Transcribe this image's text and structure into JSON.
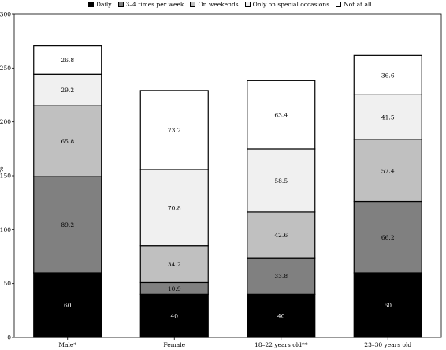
{
  "chart_data": {
    "type": "bar",
    "stacked": true,
    "categories": [
      "Male*",
      "Female",
      "18–22 years old**",
      "23–30 years old"
    ],
    "series": [
      {
        "name": "Daily",
        "color": "#000000",
        "label_color": "#ffffff",
        "values": [
          60,
          40,
          40,
          60
        ]
      },
      {
        "name": "3–4 times per week",
        "color": "#808080",
        "label_color": "#000000",
        "values": [
          89.2,
          10.9,
          33.8,
          66.2
        ]
      },
      {
        "name": "On weekends",
        "color": "#c0c0c0",
        "label_color": "#000000",
        "values": [
          65.8,
          34.2,
          42.6,
          57.4
        ]
      },
      {
        "name": "Only on special occasions",
        "color": "#f0f0f0",
        "label_color": "#000000",
        "values": [
          29.2,
          70.8,
          58.5,
          41.5
        ]
      },
      {
        "name": "Not at all",
        "color": "#ffffff",
        "label_color": "#000000",
        "values": [
          26.8,
          73.2,
          63.4,
          36.6
        ]
      }
    ],
    "ylabel": "%",
    "ylim": [
      0,
      300
    ],
    "yticks": [
      0,
      50,
      100,
      150,
      200,
      250,
      300
    ],
    "legend_position": "top",
    "grid": false
  }
}
